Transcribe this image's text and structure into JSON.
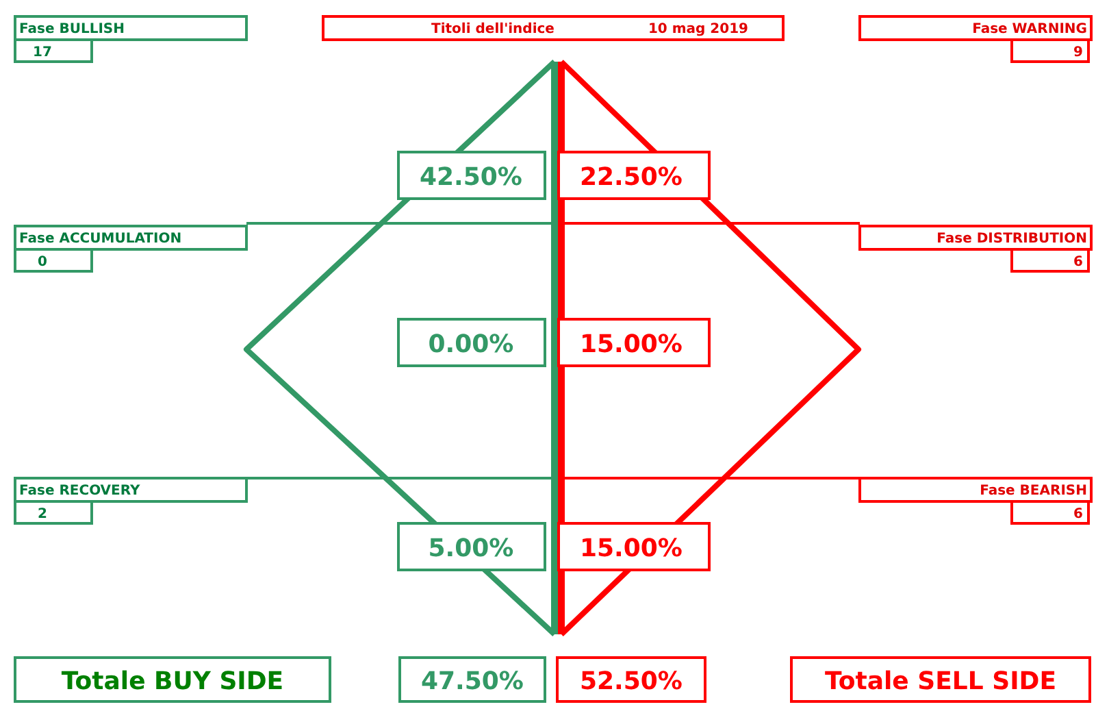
{
  "chart_data": {
    "type": "other",
    "title": "Titoli dell'indice",
    "subtitle": "10 mag 2019",
    "categories": [
      "Fase BULLISH",
      "Fase ACCUMULATION",
      "Fase RECOVERY",
      "Fase WARNING",
      "Fase DISTRIBUTION",
      "Fase BEARISH"
    ],
    "series": [
      {
        "name": "Totale BUY SIDE",
        "color": "#339966",
        "values": [
          17,
          0,
          2,
          null,
          null,
          null
        ]
      },
      {
        "name": "Totale SELL SIDE",
        "color": "#ff0000",
        "values": [
          null,
          null,
          null,
          9,
          6,
          6
        ]
      }
    ],
    "data_labels": true,
    "annotations": [
      "42.50%",
      "0.00%",
      "5.00%",
      "22.50%",
      "15.00%",
      "15.00%"
    ],
    "totals": [
      "47.50%",
      "52.50%"
    ]
  }
}
